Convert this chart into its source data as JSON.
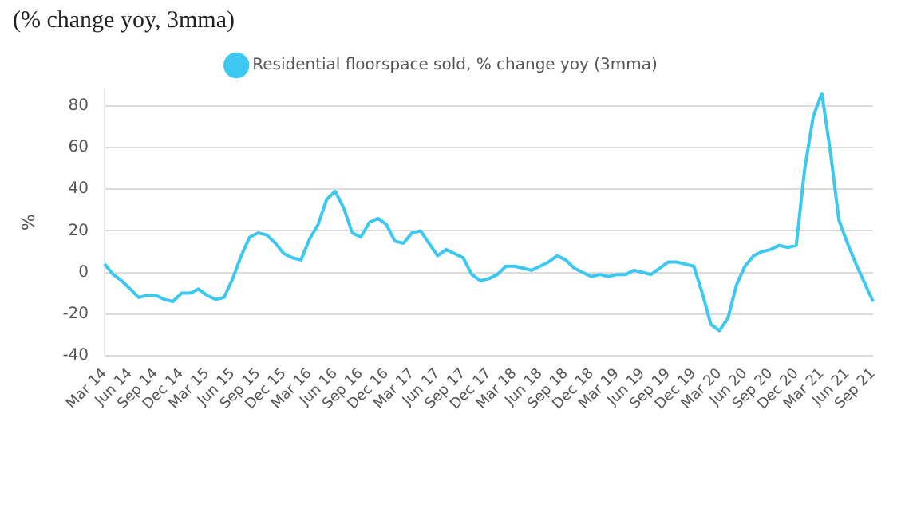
{
  "chart_data": {
    "type": "line",
    "title": "(% change yoy, 3mma)",
    "ylabel": "%",
    "categories": [
      "Mar 14",
      null,
      null,
      "Jun 14",
      null,
      null,
      "Sep 14",
      null,
      null,
      "Dec 14",
      null,
      null,
      "Mar 15",
      null,
      null,
      "Jun 15",
      null,
      null,
      "Sep 15",
      null,
      null,
      "Dec 15",
      null,
      null,
      "Mar 16",
      null,
      null,
      "Jun 16",
      null,
      null,
      "Sep 16",
      null,
      null,
      "Dec 16",
      null,
      null,
      "Mar 17",
      null,
      null,
      "Jun 17",
      null,
      null,
      "Sep 17",
      null,
      null,
      "Dec 17",
      null,
      null,
      "Mar 18",
      null,
      null,
      "Jun 18",
      null,
      null,
      "Sep 18",
      null,
      null,
      "Dec 18",
      null,
      null,
      "Mar 19",
      null,
      null,
      "Jun 19",
      null,
      null,
      "Sep 19",
      null,
      null,
      "Dec 19",
      null,
      null,
      "Mar 20",
      null,
      null,
      "Jun 20",
      null,
      null,
      "Sep 20",
      null,
      null,
      "Dec 20",
      null,
      null,
      "Mar 21",
      null,
      null,
      "Jun 21",
      null,
      null,
      "Sep 21"
    ],
    "series": [
      {
        "name": "Residential floorspace sold, % change yoy (3mma)",
        "color": "#3cc8f0",
        "values": [
          4,
          -1,
          -4,
          -8,
          -12,
          -11,
          -11,
          -13,
          -14,
          -10,
          -10,
          -8,
          -11,
          -13,
          -12,
          -3,
          8,
          17,
          19,
          18,
          14,
          9,
          7,
          6,
          16,
          23,
          35,
          39,
          31,
          19,
          17,
          24,
          26,
          23,
          15,
          14,
          19,
          20,
          14,
          8,
          11,
          9,
          7,
          -1,
          -4,
          -3,
          -1,
          3,
          3,
          2,
          1,
          3,
          5,
          8,
          6,
          2,
          0,
          -2,
          -1,
          -2,
          -1,
          -1,
          1,
          0,
          -1,
          2,
          5,
          5,
          4,
          3,
          -10,
          -25,
          -28,
          -22,
          -6,
          3,
          8,
          10,
          11,
          13,
          12,
          13,
          50,
          75,
          86,
          58,
          25,
          14,
          4,
          -5,
          -14
        ]
      }
    ],
    "ylim": [
      -40,
      88
    ],
    "yticks": [
      -40,
      -20,
      0,
      20,
      40,
      60,
      80
    ],
    "grid": "y",
    "legend": "top",
    "marker": "none",
    "line_style": "solid"
  }
}
